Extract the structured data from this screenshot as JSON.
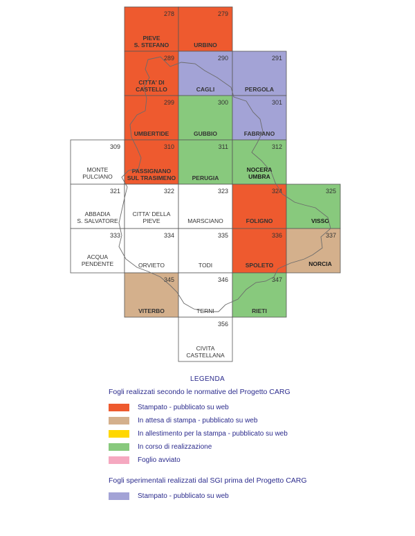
{
  "colors": {
    "stampato": "#ee5a2f",
    "attesa": "#d4b08c",
    "allestimento": "#ffd700",
    "corso": "#88c97d",
    "avviato": "#f5a8c0",
    "sgi": "#a3a3d6",
    "none": "#ffffff"
  },
  "tiles": [
    {
      "num": "278",
      "name": [
        "PIEVE",
        "S. STEFANO"
      ],
      "status": "stampato"
    },
    {
      "num": "279",
      "name": [
        "URBINO"
      ],
      "status": "stampato"
    },
    {
      "num": "289",
      "name": [
        "CITTA' DI",
        "CASTELLO"
      ],
      "status": "stampato"
    },
    {
      "num": "290",
      "name": [
        "CAGLI"
      ],
      "status": "sgi"
    },
    {
      "num": "291",
      "name": [
        "PERGOLA"
      ],
      "status": "sgi"
    },
    {
      "num": "299",
      "name": [
        "UMBERTIDE"
      ],
      "status": "stampato"
    },
    {
      "num": "300",
      "name": [
        "GUBBIO"
      ],
      "status": "corso"
    },
    {
      "num": "301",
      "name": [
        "FABRIANO"
      ],
      "status": "sgi"
    },
    {
      "num": "309",
      "name": [
        "MONTE",
        "PULCIANO"
      ],
      "status": "none"
    },
    {
      "num": "310",
      "name": [
        "PASSIGNANO",
        "SUL TRASIMENO"
      ],
      "status": "stampato"
    },
    {
      "num": "311",
      "name": [
        "PERUGIA"
      ],
      "status": "corso"
    },
    {
      "num": "312",
      "name": [
        "NOCERA",
        "UMBRA"
      ],
      "status": "corso"
    },
    {
      "num": "321",
      "name": [
        "ABBADIA",
        "S. SALVATORE"
      ],
      "status": "none"
    },
    {
      "num": "322",
      "name": [
        "CITTA' DELLA",
        "PIEVE"
      ],
      "status": "none"
    },
    {
      "num": "323",
      "name": [
        "MARSCIANO"
      ],
      "status": "none"
    },
    {
      "num": "324",
      "name": [
        "FOLIGNO"
      ],
      "status": "stampato"
    },
    {
      "num": "325",
      "name": [
        "VISSO"
      ],
      "status": "corso"
    },
    {
      "num": "333",
      "name": [
        "ACQUA",
        "PENDENTE"
      ],
      "status": "none"
    },
    {
      "num": "334",
      "name": [
        "ORVIETO"
      ],
      "status": "none"
    },
    {
      "num": "335",
      "name": [
        "TODI"
      ],
      "status": "none"
    },
    {
      "num": "336",
      "name": [
        "SPOLETO"
      ],
      "status": "stampato"
    },
    {
      "num": "337",
      "name": [
        "NORCIA"
      ],
      "status": "attesa"
    },
    {
      "num": "345",
      "name": [
        "VITERBO"
      ],
      "status": "attesa"
    },
    {
      "num": "346",
      "name": [
        "TERNI"
      ],
      "status": "none"
    },
    {
      "num": "347",
      "name": [
        "RIETI"
      ],
      "status": "corso"
    },
    {
      "num": "356",
      "name": [
        "CIVITA",
        "CASTELLANA"
      ],
      "status": "none"
    }
  ],
  "legend": {
    "title": "LEGENDA",
    "heading1": "Fogli realizzati secondo le normative del Progetto CARG",
    "items1": [
      {
        "status": "stampato",
        "label": "Stampato - pubblicato su web"
      },
      {
        "status": "attesa",
        "label": "In attesa di stampa - pubblicato su web"
      },
      {
        "status": "allestimento",
        "label": "In allestimento per la stampa - pubblicato su web"
      },
      {
        "status": "corso",
        "label": "In corso di realizzazione"
      },
      {
        "status": "avviato",
        "label": "Foglio avviato"
      }
    ],
    "heading2": "Fogli sperimentali realizzati dal SGI prima del Progetto CARG",
    "items2": [
      {
        "status": "sgi",
        "label": "Stampato - pubblicato su web"
      }
    ]
  }
}
